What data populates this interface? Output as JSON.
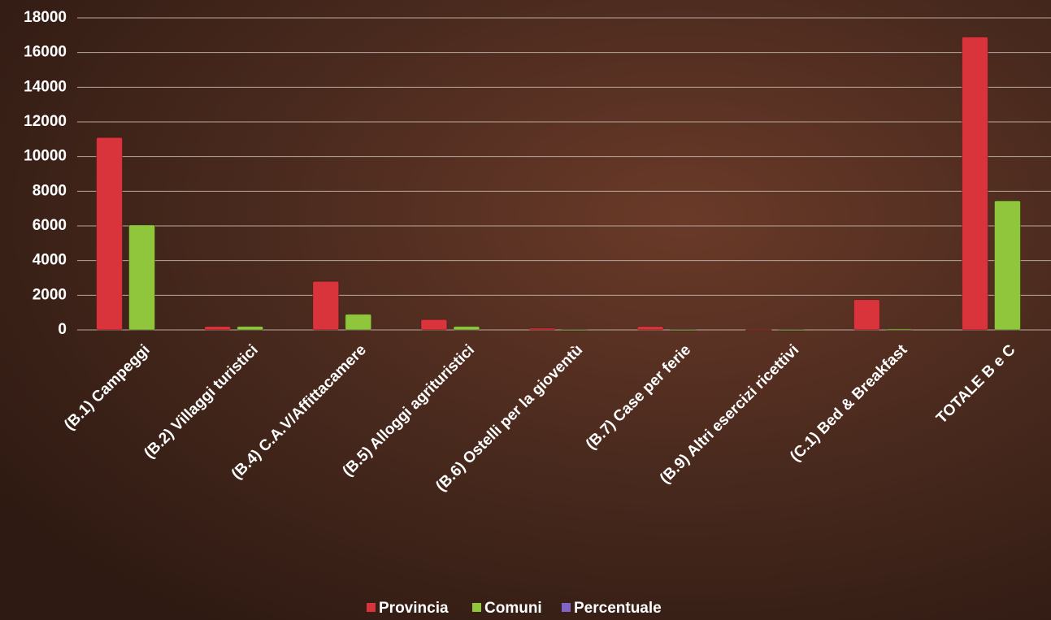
{
  "chart_data": {
    "type": "bar",
    "categories": [
      "(B.1) Campeggi",
      "(B.2) Villaggi  turistici",
      "(B.4) C.A.V/Affittacamere",
      "(B.5) Alloggi agrituristici",
      "(B.6) Ostelli per la gioventù",
      "(B.7) Case per ferie",
      "(B.9) Altri esercizi ricettivi",
      "(C.1) Bed & Breakfast",
      "TOTALE B e C"
    ],
    "series": [
      {
        "name": "Provincia",
        "color": "#d9343b",
        "values": [
          11100,
          200,
          2800,
          600,
          100,
          200,
          20,
          1750,
          16900
        ]
      },
      {
        "name": "Comuni",
        "color": "#8fc63c",
        "values": [
          6050,
          200,
          900,
          200,
          0,
          0,
          0,
          60,
          7450
        ]
      },
      {
        "name": "Percentuale",
        "color": "#8064c8",
        "values": [
          null,
          null,
          null,
          null,
          null,
          null,
          null,
          null,
          null
        ]
      }
    ],
    "ylim": [
      0,
      18000
    ],
    "yticks": [
      0,
      2000,
      4000,
      6000,
      8000,
      10000,
      12000,
      14000,
      16000,
      18000
    ],
    "grid": true,
    "legend": "bottom"
  }
}
